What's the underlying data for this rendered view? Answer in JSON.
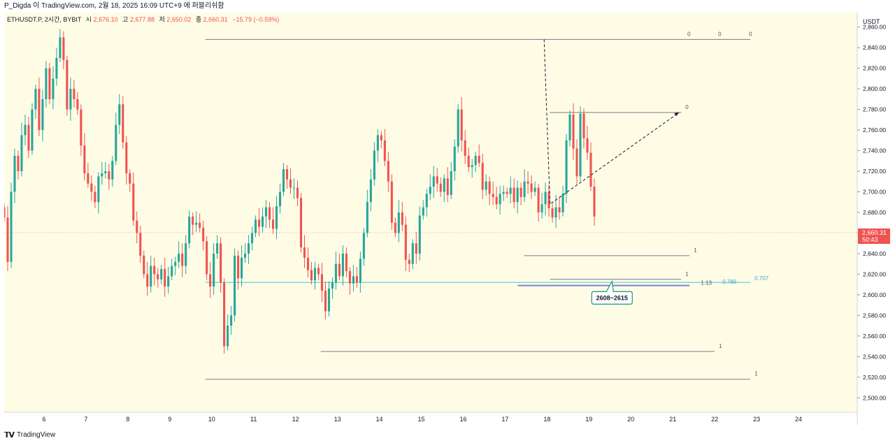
{
  "header": {
    "publisher_line": "P_Digda 이 TradingView.com, 2월 18, 2025 16:09 UTC+9 에 퍼블리쉬함"
  },
  "legend": {
    "symbol": "ETHUSDT.P, 2시간, BYBIT",
    "open_label": "시",
    "open": "2,676.10",
    "high_label": "고",
    "high": "2,677.88",
    "low_label": "저",
    "low": "2,650.02",
    "close_label": "종",
    "close": "2,660.31",
    "change": "−15.79 (−0.59%)"
  },
  "price_axis": {
    "currency": "USDT",
    "last_price": "2,660.31",
    "countdown": "50:43"
  },
  "footer": {
    "brand": "TradingView"
  },
  "annotation": {
    "zone_label": "2608~2615"
  },
  "colors": {
    "up": "#26a69a",
    "down": "#ef5350",
    "chart_bg": "#fffce6",
    "fib_line": "#787b86",
    "cyan_line": "#5fc9d9",
    "callout_border": "#2a9d8f"
  },
  "chart_data": {
    "type": "candlestick",
    "symbol": "ETHUSDT.P",
    "exchange": "BYBIT",
    "timeframe": "2시간",
    "ylim": [
      2490,
      2870
    ],
    "y_ticks": [
      2500,
      2520,
      2540,
      2560,
      2580,
      2600,
      2620,
      2640,
      2660,
      2680,
      2700,
      2720,
      2740,
      2760,
      2780,
      2800,
      2820,
      2840,
      2860
    ],
    "y_tick_labels": [
      "2,500.00",
      "2,520.00",
      "2,540.00",
      "2,560.00",
      "2,580.00",
      "2,600.00",
      "2,620.00",
      "2,640.00",
      "2,660.00",
      "2,680.00",
      "2,700.00",
      "2,720.00",
      "2,740.00",
      "2,760.00",
      "2,780.00",
      "2,800.00",
      "2,820.00",
      "2,840.00",
      "2,860.00"
    ],
    "x_ticks": [
      {
        "day": 6,
        "label": "6"
      },
      {
        "day": 7,
        "label": "7"
      },
      {
        "day": 8,
        "label": "8"
      },
      {
        "day": 9,
        "label": "9"
      },
      {
        "day": 10,
        "label": "10"
      },
      {
        "day": 11,
        "label": "11"
      },
      {
        "day": 12,
        "label": "12"
      },
      {
        "day": 13,
        "label": "13"
      },
      {
        "day": 14,
        "label": "14"
      },
      {
        "day": 15,
        "label": "15"
      },
      {
        "day": 16,
        "label": "16"
      },
      {
        "day": 17,
        "label": "17"
      },
      {
        "day": 18,
        "label": "18"
      },
      {
        "day": 19,
        "label": "19"
      },
      {
        "day": 20,
        "label": "20"
      },
      {
        "day": 21,
        "label": "21"
      },
      {
        "day": 22,
        "label": "22"
      },
      {
        "day": 23,
        "label": "23"
      },
      {
        "day": 24,
        "label": "24"
      }
    ],
    "x_range": [
      5.05,
      25.4
    ],
    "candles_start_day": 5.05,
    "candle_step_days": 0.0833,
    "closes": [
      2675,
      2632,
      2700,
      2735,
      2720,
      2755,
      2765,
      2740,
      2780,
      2800,
      2760,
      2790,
      2820,
      2790,
      2810,
      2830,
      2850,
      2828,
      2780,
      2800,
      2790,
      2780,
      2745,
      2718,
      2708,
      2700,
      2690,
      2715,
      2718,
      2720,
      2712,
      2730,
      2765,
      2785,
      2748,
      2718,
      2708,
      2672,
      2660,
      2638,
      2620,
      2608,
      2628,
      2620,
      2615,
      2625,
      2608,
      2618,
      2628,
      2632,
      2640,
      2628,
      2650,
      2676,
      2668,
      2670,
      2665,
      2652,
      2620,
      2608,
      2640,
      2650,
      2612,
      2550,
      2570,
      2580,
      2638,
      2616,
      2636,
      2640,
      2650,
      2660,
      2673,
      2666,
      2676,
      2685,
      2673,
      2664,
      2686,
      2700,
      2722,
      2712,
      2704,
      2704,
      2694,
      2646,
      2636,
      2624,
      2614,
      2626,
      2620,
      2604,
      2584,
      2606,
      2612,
      2630,
      2618,
      2640,
      2623,
      2611,
      2618,
      2612,
      2635,
      2660,
      2690,
      2712,
      2740,
      2755,
      2750,
      2730,
      2710,
      2670,
      2660,
      2680,
      2668,
      2634,
      2630,
      2650,
      2640,
      2677,
      2685,
      2698,
      2705,
      2715,
      2708,
      2700,
      2713,
      2697,
      2720,
      2744,
      2780,
      2750,
      2735,
      2724,
      2726,
      2735,
      2728,
      2702,
      2710,
      2698,
      2695,
      2688,
      2698,
      2700,
      2698,
      2704,
      2690,
      2704,
      2695,
      2710,
      2708,
      2700,
      2704,
      2680,
      2688,
      2700,
      2684,
      2675,
      2685,
      2680,
      2698,
      2750,
      2775,
      2742,
      2715,
      2776,
      2752,
      2738,
      2705,
      2676
    ],
    "last_price": 2660.31,
    "legend_ohlc": {
      "open": 2676.1,
      "high": 2677.88,
      "low": 2650.02,
      "close": 2660.31,
      "change": -15.79,
      "change_pct": -0.59
    },
    "horizontal_levels": [
      {
        "price": 2848,
        "from_day": 9.85,
        "to_day": 22.85,
        "labels": [
          "0",
          "0",
          "0"
        ]
      },
      {
        "price": 2777,
        "from_day": 18.07,
        "to_day": 21.2,
        "labels": [
          "0"
        ]
      },
      {
        "price": 2638,
        "from_day": 17.45,
        "to_day": 21.4,
        "labels": [
          "1"
        ]
      },
      {
        "price": 2615,
        "from_day": 18.07,
        "to_day": 21.2,
        "labels": [
          "1"
        ]
      },
      {
        "price": 2612,
        "from_day": 9.85,
        "to_day": 22.85,
        "labels": [
          "0.786",
          "0.707"
        ],
        "style": "cyan"
      },
      {
        "price": 2609,
        "from_day": 17.3,
        "to_day": 21.4,
        "labels": [
          "1.13"
        ],
        "style": "blue"
      },
      {
        "price": 2545,
        "from_day": 12.6,
        "to_day": 22.0,
        "labels": [
          "1"
        ]
      },
      {
        "price": 2518,
        "from_day": 9.85,
        "to_day": 22.85,
        "labels": [
          "1"
        ]
      }
    ],
    "dashed_projection": [
      {
        "day": 17.93,
        "price": 2848
      },
      {
        "day": 18.07,
        "price": 2688
      },
      {
        "day": 21.15,
        "price": 2777
      }
    ],
    "callout": {
      "label": "2608~2615",
      "anchor_day": 19.55,
      "anchor_price": 2613,
      "box_day": 19.55,
      "box_price": 2597
    }
  }
}
